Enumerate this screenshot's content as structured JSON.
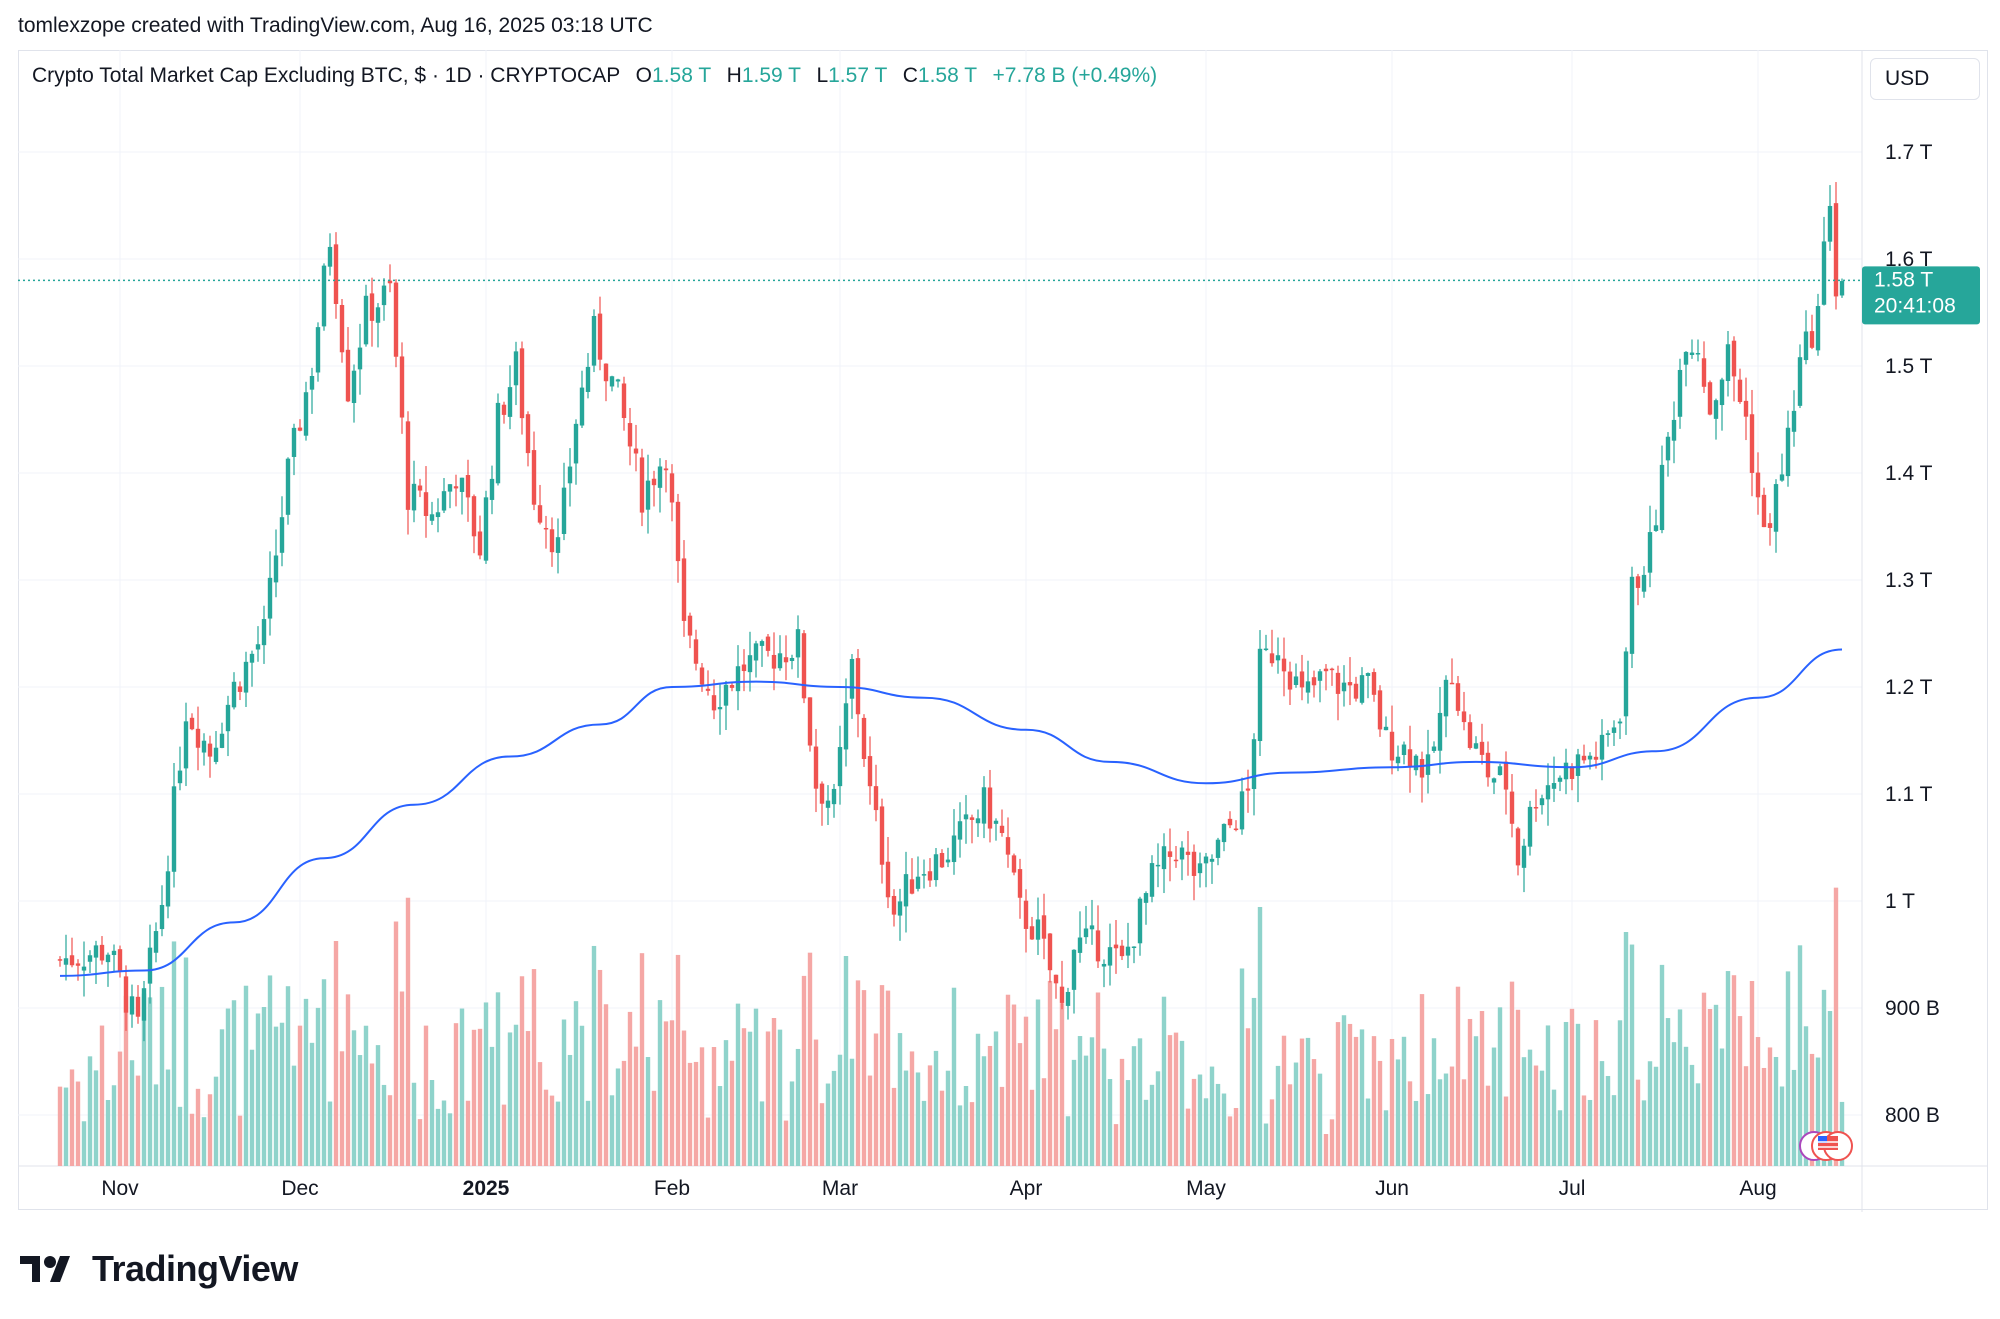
{
  "header": {
    "attribution": "tomlexzope created with TradingView.com, Aug 16, 2025 03:18 UTC"
  },
  "legend": {
    "symbol": "Crypto Total Market Cap Excluding BTC, $ · 1D · CRYPTOCAP",
    "open_label": "O",
    "open_value": "1.58 T",
    "high_label": "H",
    "high_value": "1.59 T",
    "low_label": "L",
    "low_value": "1.57 T",
    "close_label": "C",
    "close_value": "1.58 T",
    "change": "+7.78 B (+0.49%)"
  },
  "currency_button": "USD",
  "price_tag": {
    "value": "1.58 T",
    "countdown": "20:41:08"
  },
  "brand": {
    "name": "TradingView"
  },
  "colors": {
    "up": "#26a69a",
    "down": "#ef5350",
    "ma_line": "#2962ff",
    "volume_up": "#8fd3cb",
    "volume_down": "#f5a7a5",
    "grid": "#f0f3fa",
    "text": "#131722"
  },
  "chart_data": {
    "type": "candlestick",
    "title": "Crypto Total Market Cap Excluding BTC, $ · 1D · CRYPTOCAP",
    "y_axis": {
      "unit": "USD",
      "ylim": [
        760000000000,
        1730000000000
      ],
      "tick_labels": [
        "1.7 T",
        "1.6 T",
        "1.5 T",
        "1.4 T",
        "1.3 T",
        "1.2 T",
        "1.1 T",
        "1 T",
        "900 B",
        "800 B"
      ],
      "tick_values": [
        1700000000000,
        1600000000000,
        1500000000000,
        1400000000000,
        1300000000000,
        1200000000000,
        1100000000000,
        1000000000000,
        900000000000,
        800000000000
      ],
      "grid": true
    },
    "x_axis": {
      "tick_labels": [
        "Nov",
        "Dec",
        "2025",
        "Feb",
        "Mar",
        "Apr",
        "May",
        "Jun",
        "Jul",
        "Aug"
      ],
      "tick_dates": [
        "2024-11-01",
        "2024-12-01",
        "2025-01-01",
        "2025-02-01",
        "2025-03-01",
        "2025-04-01",
        "2025-05-01",
        "2025-06-01",
        "2025-07-01",
        "2025-08-01"
      ],
      "range": [
        "2024-10-22",
        "2025-08-31"
      ],
      "grid": true
    },
    "last_price": 1580000000000,
    "ohlc_anchors": [
      {
        "date": "2024-10-22",
        "close": 0.945
      },
      {
        "date": "2024-10-30",
        "close": 0.955
      },
      {
        "date": "2024-11-04",
        "close": 0.88
      },
      {
        "date": "2024-11-08",
        "close": 1.0
      },
      {
        "date": "2024-11-12",
        "close": 1.18
      },
      {
        "date": "2024-11-16",
        "close": 1.14
      },
      {
        "date": "2024-11-20",
        "close": 1.2
      },
      {
        "date": "2024-11-25",
        "close": 1.25
      },
      {
        "date": "2024-11-29",
        "close": 1.4
      },
      {
        "date": "2024-12-03",
        "close": 1.5
      },
      {
        "date": "2024-12-06",
        "close": 1.62
      },
      {
        "date": "2024-12-09",
        "close": 1.48
      },
      {
        "date": "2024-12-12",
        "close": 1.55
      },
      {
        "date": "2024-12-16",
        "close": 1.57
      },
      {
        "date": "2024-12-19",
        "close": 1.38
      },
      {
        "date": "2024-12-23",
        "close": 1.36
      },
      {
        "date": "2024-12-27",
        "close": 1.4
      },
      {
        "date": "2024-12-31",
        "close": 1.33
      },
      {
        "date": "2025-01-03",
        "close": 1.45
      },
      {
        "date": "2025-01-06",
        "close": 1.5
      },
      {
        "date": "2025-01-09",
        "close": 1.38
      },
      {
        "date": "2025-01-13",
        "close": 1.33
      },
      {
        "date": "2025-01-16",
        "close": 1.45
      },
      {
        "date": "2025-01-19",
        "close": 1.53
      },
      {
        "date": "2025-01-23",
        "close": 1.47
      },
      {
        "date": "2025-01-27",
        "close": 1.38
      },
      {
        "date": "2025-01-31",
        "close": 1.42
      },
      {
        "date": "2025-02-03",
        "close": 1.25
      },
      {
        "date": "2025-02-08",
        "close": 1.19
      },
      {
        "date": "2025-02-13",
        "close": 1.22
      },
      {
        "date": "2025-02-18",
        "close": 1.23
      },
      {
        "date": "2025-02-22",
        "close": 1.24
      },
      {
        "date": "2025-02-25",
        "close": 1.11
      },
      {
        "date": "2025-02-28",
        "close": 1.09
      },
      {
        "date": "2025-03-03",
        "close": 1.22
      },
      {
        "date": "2025-03-06",
        "close": 1.1
      },
      {
        "date": "2025-03-10",
        "close": 0.99
      },
      {
        "date": "2025-03-14",
        "close": 1.03
      },
      {
        "date": "2025-03-18",
        "close": 1.04
      },
      {
        "date": "2025-03-21",
        "close": 1.06
      },
      {
        "date": "2025-03-25",
        "close": 1.09
      },
      {
        "date": "2025-03-28",
        "close": 1.06
      },
      {
        "date": "2025-03-31",
        "close": 0.99
      },
      {
        "date": "2025-04-03",
        "close": 0.97
      },
      {
        "date": "2025-04-07",
        "close": 0.9
      },
      {
        "date": "2025-04-09",
        "close": 0.96
      },
      {
        "date": "2025-04-13",
        "close": 0.96
      },
      {
        "date": "2025-04-17",
        "close": 0.94
      },
      {
        "date": "2025-04-22",
        "close": 1.02
      },
      {
        "date": "2025-04-26",
        "close": 1.05
      },
      {
        "date": "2025-04-30",
        "close": 1.02
      },
      {
        "date": "2025-05-08",
        "close": 1.1
      },
      {
        "date": "2025-05-10",
        "close": 1.22
      },
      {
        "date": "2025-05-13",
        "close": 1.24
      },
      {
        "date": "2025-05-17",
        "close": 1.19
      },
      {
        "date": "2025-05-21",
        "close": 1.21
      },
      {
        "date": "2025-05-24",
        "close": 1.2
      },
      {
        "date": "2025-05-28",
        "close": 1.2
      },
      {
        "date": "2025-05-31",
        "close": 1.15
      },
      {
        "date": "2025-06-04",
        "close": 1.14
      },
      {
        "date": "2025-06-07",
        "close": 1.12
      },
      {
        "date": "2025-06-11",
        "close": 1.22
      },
      {
        "date": "2025-06-13",
        "close": 1.16
      },
      {
        "date": "2025-06-17",
        "close": 1.12
      },
      {
        "date": "2025-06-20",
        "close": 1.11
      },
      {
        "date": "2025-06-22",
        "close": 1.04
      },
      {
        "date": "2025-06-25",
        "close": 1.1
      },
      {
        "date": "2025-06-29",
        "close": 1.12
      },
      {
        "date": "2025-07-02",
        "close": 1.13
      },
      {
        "date": "2025-07-06",
        "close": 1.14
      },
      {
        "date": "2025-07-09",
        "close": 1.18
      },
      {
        "date": "2025-07-11",
        "close": 1.29
      },
      {
        "date": "2025-07-14",
        "close": 1.33
      },
      {
        "date": "2025-07-17",
        "close": 1.43
      },
      {
        "date": "2025-07-20",
        "close": 1.53
      },
      {
        "date": "2025-07-22",
        "close": 1.52
      },
      {
        "date": "2025-07-24",
        "close": 1.46
      },
      {
        "date": "2025-07-27",
        "close": 1.51
      },
      {
        "date": "2025-07-30",
        "close": 1.45
      },
      {
        "date": "2025-08-02",
        "close": 1.34
      },
      {
        "date": "2025-08-05",
        "close": 1.4
      },
      {
        "date": "2025-08-08",
        "close": 1.5
      },
      {
        "date": "2025-08-11",
        "close": 1.55
      },
      {
        "date": "2025-08-13",
        "close": 1.66
      },
      {
        "date": "2025-08-14",
        "close": 1.57
      },
      {
        "date": "2025-08-15",
        "close": 1.58
      }
    ],
    "ohlc_units": "trillions USD (approximate, read from chart)",
    "moving_average": {
      "points": [
        {
          "date": "2024-10-22",
          "value": 0.93
        },
        {
          "date": "2024-11-05",
          "value": 0.935
        },
        {
          "date": "2024-11-20",
          "value": 0.98
        },
        {
          "date": "2024-12-05",
          "value": 1.04
        },
        {
          "date": "2024-12-20",
          "value": 1.09
        },
        {
          "date": "2025-01-05",
          "value": 1.135
        },
        {
          "date": "2025-01-20",
          "value": 1.165
        },
        {
          "date": "2025-02-01",
          "value": 1.2
        },
        {
          "date": "2025-02-15",
          "value": 1.205
        },
        {
          "date": "2025-03-01",
          "value": 1.2
        },
        {
          "date": "2025-03-15",
          "value": 1.19
        },
        {
          "date": "2025-04-01",
          "value": 1.16
        },
        {
          "date": "2025-04-15",
          "value": 1.13
        },
        {
          "date": "2025-05-01",
          "value": 1.11
        },
        {
          "date": "2025-05-15",
          "value": 1.12
        },
        {
          "date": "2025-06-01",
          "value": 1.125
        },
        {
          "date": "2025-06-15",
          "value": 1.13
        },
        {
          "date": "2025-07-01",
          "value": 1.125
        },
        {
          "date": "2025-07-15",
          "value": 1.14
        },
        {
          "date": "2025-08-01",
          "value": 1.19
        },
        {
          "date": "2025-08-15",
          "value": 1.235
        }
      ]
    }
  }
}
